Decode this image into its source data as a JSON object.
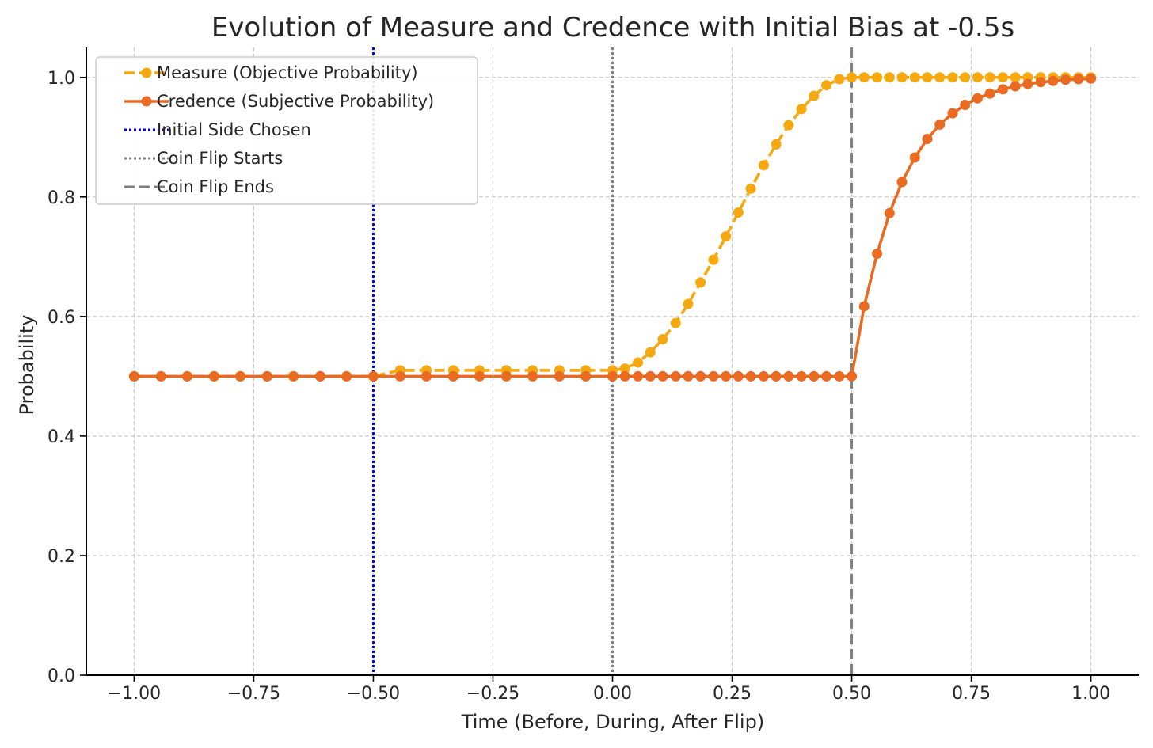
{
  "chart_data": {
    "type": "line",
    "title": "Evolution of Measure and Credence with Initial Bias at -0.5s",
    "xlabel": "Time (Before, During, After Flip)",
    "ylabel": "Probability",
    "xlim": [
      -1.1,
      1.1
    ],
    "ylim": [
      0.0,
      1.05
    ],
    "xticks": [
      -1.0,
      -0.75,
      -0.5,
      -0.25,
      0.0,
      0.25,
      0.5,
      0.75,
      1.0
    ],
    "xtick_labels": [
      "−1.00",
      "−0.75",
      "−0.50",
      "−0.25",
      "0.00",
      "0.25",
      "0.50",
      "0.75",
      "1.00"
    ],
    "yticks": [
      0.0,
      0.2,
      0.4,
      0.6,
      0.8,
      1.0
    ],
    "ytick_labels": [
      "0.0",
      "0.2",
      "0.4",
      "0.6",
      "0.8",
      "1.0"
    ],
    "grid": true,
    "legend_position": "top-left",
    "series": [
      {
        "name": "Measure (Objective Probability)",
        "color": "#f5a80f",
        "line_style": "dashed",
        "marker": "circle",
        "x": [
          -1.0,
          -0.944,
          -0.889,
          -0.833,
          -0.778,
          -0.722,
          -0.667,
          -0.611,
          -0.556,
          -0.5,
          -0.444,
          -0.389,
          -0.333,
          -0.278,
          -0.222,
          -0.167,
          -0.111,
          -0.056,
          0.0,
          0.026,
          0.053,
          0.079,
          0.105,
          0.132,
          0.158,
          0.184,
          0.211,
          0.237,
          0.263,
          0.289,
          0.316,
          0.342,
          0.368,
          0.395,
          0.421,
          0.447,
          0.474,
          0.5,
          0.526,
          0.553,
          0.579,
          0.605,
          0.632,
          0.658,
          0.684,
          0.711,
          0.737,
          0.763,
          0.789,
          0.816,
          0.842,
          0.868,
          0.895,
          0.921,
          0.947,
          0.974,
          1.0
        ],
        "y": [
          0.5,
          0.5,
          0.5,
          0.5,
          0.5,
          0.5,
          0.5,
          0.5,
          0.5,
          0.5,
          0.51,
          0.51,
          0.51,
          0.51,
          0.51,
          0.51,
          0.51,
          0.51,
          0.51,
          0.513,
          0.523,
          0.54,
          0.562,
          0.589,
          0.621,
          0.657,
          0.695,
          0.734,
          0.774,
          0.814,
          0.853,
          0.888,
          0.92,
          0.947,
          0.969,
          0.987,
          0.997,
          1.0,
          1.0,
          1.0,
          1.0,
          1.0,
          1.0,
          1.0,
          1.0,
          1.0,
          1.0,
          1.0,
          1.0,
          1.0,
          1.0,
          1.0,
          1.0,
          1.0,
          1.0,
          1.0,
          1.0
        ]
      },
      {
        "name": "Credence (Subjective Probability)",
        "color": "#ea6a21",
        "line_style": "solid",
        "marker": "circle",
        "x": [
          -1.0,
          -0.944,
          -0.889,
          -0.833,
          -0.778,
          -0.722,
          -0.667,
          -0.611,
          -0.556,
          -0.5,
          -0.444,
          -0.389,
          -0.333,
          -0.278,
          -0.222,
          -0.167,
          -0.111,
          -0.056,
          0.0,
          0.026,
          0.053,
          0.079,
          0.105,
          0.132,
          0.158,
          0.184,
          0.211,
          0.237,
          0.263,
          0.289,
          0.316,
          0.342,
          0.368,
          0.395,
          0.421,
          0.447,
          0.474,
          0.5,
          0.526,
          0.553,
          0.579,
          0.605,
          0.632,
          0.658,
          0.684,
          0.711,
          0.737,
          0.763,
          0.789,
          0.816,
          0.842,
          0.868,
          0.895,
          0.921,
          0.947,
          0.974,
          1.0
        ],
        "y": [
          0.5,
          0.5,
          0.5,
          0.5,
          0.5,
          0.5,
          0.5,
          0.5,
          0.5,
          0.5,
          0.5,
          0.5,
          0.5,
          0.5,
          0.5,
          0.5,
          0.5,
          0.5,
          0.5,
          0.5,
          0.5,
          0.5,
          0.5,
          0.5,
          0.5,
          0.5,
          0.5,
          0.5,
          0.5,
          0.5,
          0.5,
          0.5,
          0.5,
          0.5,
          0.5,
          0.5,
          0.5,
          0.5,
          0.617,
          0.705,
          0.773,
          0.825,
          0.866,
          0.897,
          0.921,
          0.94,
          0.954,
          0.965,
          0.973,
          0.98,
          0.985,
          0.989,
          0.992,
          0.994,
          0.996,
          0.997,
          0.998
        ]
      }
    ],
    "vlines": [
      {
        "name": "Initial Side Chosen",
        "x": -0.5,
        "color": "#0000ee",
        "line_style": "dotted"
      },
      {
        "name": "Coin Flip Starts",
        "x": 0.0,
        "color": "#808080",
        "line_style": "dotted"
      },
      {
        "name": "Coin Flip Ends",
        "x": 0.5,
        "color": "#808080",
        "line_style": "dashed"
      }
    ]
  }
}
